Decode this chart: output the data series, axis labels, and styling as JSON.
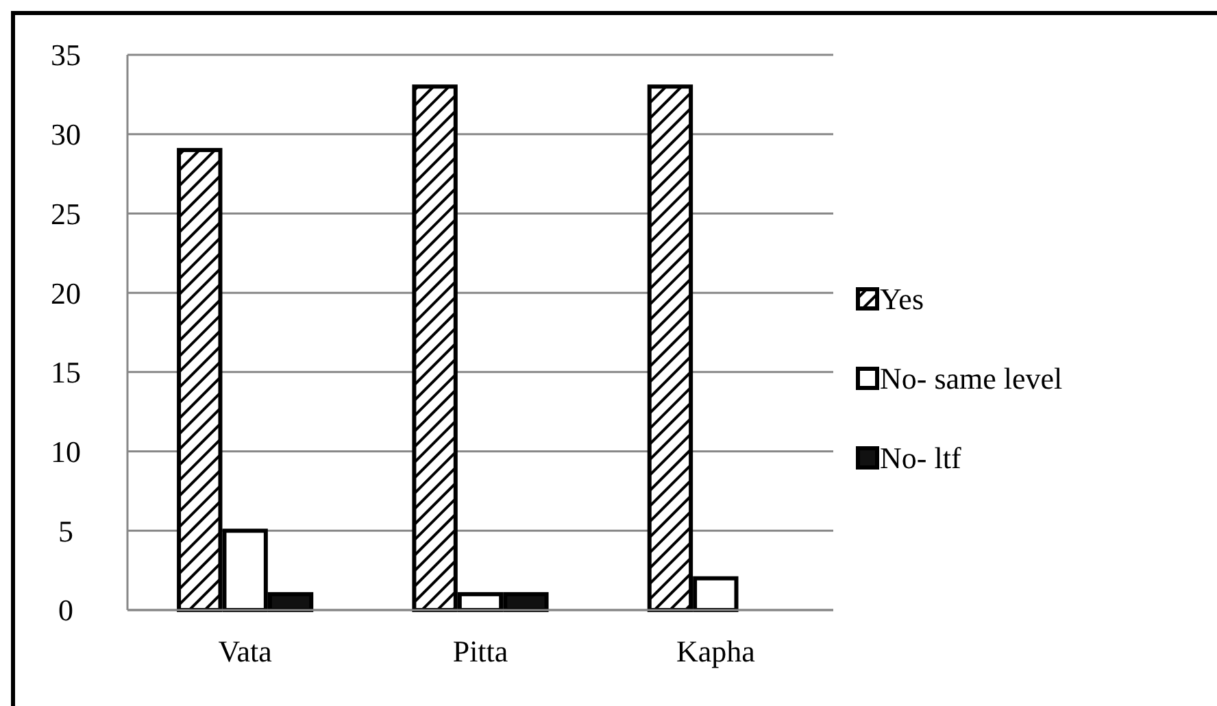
{
  "chart_data": {
    "type": "bar",
    "categories": [
      "Vata",
      "Pitta",
      "Kapha"
    ],
    "series": [
      {
        "name": "Yes",
        "color": "#000000",
        "values": [
          29,
          33,
          33
        ]
      },
      {
        "name": "No- same level",
        "color": "#ffffff",
        "values": [
          5,
          1,
          2
        ]
      },
      {
        "name": "No- ltf",
        "color": "#111111",
        "values": [
          1,
          1,
          0
        ]
      }
    ],
    "ylim": [
      0,
      35
    ],
    "yticks": [
      0,
      5,
      10,
      15,
      20,
      25,
      30,
      35
    ],
    "grid": "y",
    "legend": "right"
  }
}
